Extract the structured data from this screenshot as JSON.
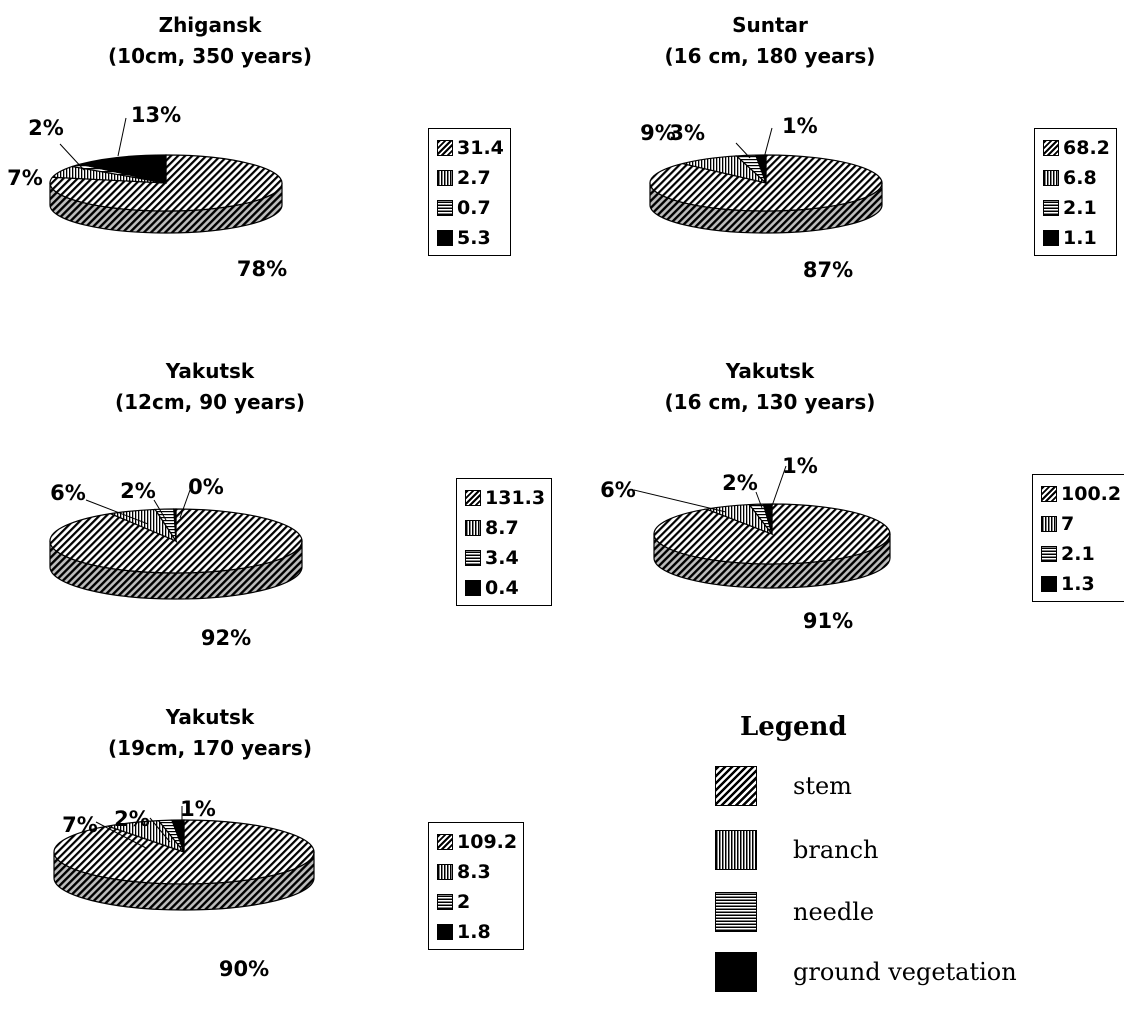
{
  "chart_data": [
    {
      "type": "pie",
      "title_line1": "Zhigansk",
      "title_line2": "(10cm, 350 years)",
      "categories": [
        "stem",
        "branch",
        "needle",
        "ground vegetation"
      ],
      "values": [
        31.4,
        2.7,
        0.7,
        5.3
      ],
      "percent_labels": [
        "78%",
        "7%",
        "2%",
        "13%"
      ],
      "legend_values": [
        "31.4",
        "2.7",
        "0.7",
        "5.3"
      ]
    },
    {
      "type": "pie",
      "title_line1": "Suntar",
      "title_line2": "(16 cm, 180 years)",
      "categories": [
        "stem",
        "branch",
        "needle",
        "ground vegetation"
      ],
      "values": [
        68.2,
        6.8,
        2.1,
        1.1
      ],
      "percent_labels": [
        "87%",
        "9%",
        "3%",
        "1%"
      ],
      "legend_values": [
        "68.2",
        "6.8",
        "2.1",
        "1.1"
      ]
    },
    {
      "type": "pie",
      "title_line1": "Yakutsk",
      "title_line2": "(12cm, 90 years)",
      "categories": [
        "stem",
        "branch",
        "needle",
        "ground vegetation"
      ],
      "values": [
        131.3,
        8.7,
        3.4,
        0.4
      ],
      "percent_labels": [
        "92%",
        "6%",
        "2%",
        "0%"
      ],
      "legend_values": [
        "131.3",
        "8.7",
        "3.4",
        "0.4"
      ]
    },
    {
      "type": "pie",
      "title_line1": "Yakutsk",
      "title_line2": "(16 cm, 130 years)",
      "categories": [
        "stem",
        "branch",
        "needle",
        "ground vegetation"
      ],
      "values": [
        100.2,
        7,
        2.1,
        1.3
      ],
      "percent_labels": [
        "91%",
        "6%",
        "2%",
        "1%"
      ],
      "legend_values": [
        "100.2",
        "7",
        "2.1",
        "1.3"
      ]
    },
    {
      "type": "pie",
      "title_line1": "Yakutsk",
      "title_line2": "(19cm, 170 years)",
      "categories": [
        "stem",
        "branch",
        "needle",
        "ground vegetation"
      ],
      "values": [
        109.2,
        8.3,
        2,
        1.8
      ],
      "percent_labels": [
        "90%",
        "7%",
        "2%",
        "1%"
      ],
      "legend_values": [
        "109.2",
        "8.3",
        "2",
        "1.8"
      ]
    }
  ],
  "legend": {
    "title": "Legend",
    "items": [
      {
        "label": "stem",
        "pattern": "diagonal-hatch"
      },
      {
        "label": "branch",
        "pattern": "vertical-hatch"
      },
      {
        "label": "needle",
        "pattern": "horizontal-hatch"
      },
      {
        "label": "ground vegetation",
        "pattern": "solid-black"
      }
    ]
  }
}
